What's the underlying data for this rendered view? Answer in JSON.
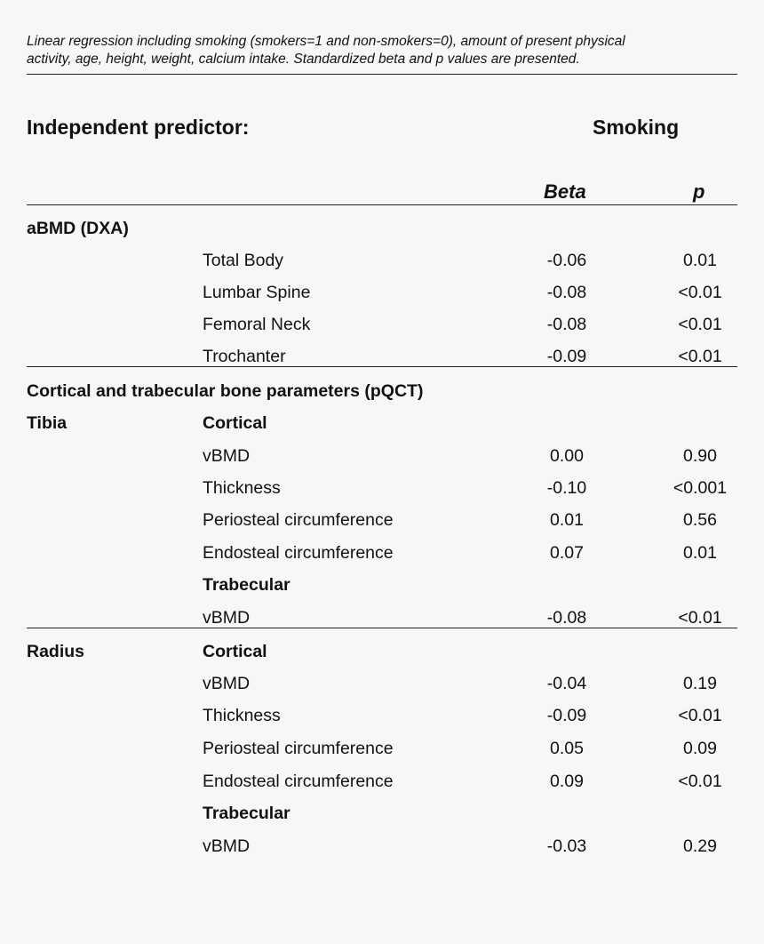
{
  "caption": {
    "line1": "Linear regression including smoking (smokers=1 and non-smokers=0), amount of present physical",
    "line2": "activity, age, height, weight, calcium intake. Standardized beta and p values are presented."
  },
  "header": {
    "predictor_label": "Independent predictor:",
    "predictor_value": "Smoking",
    "col_beta": "Beta",
    "col_p": "p"
  },
  "sections": {
    "abmd": "aBMD (DXA)",
    "pqct": "Cortical and trabecular bone parameters (pQCT)"
  },
  "rows": [
    {
      "site": "",
      "param": "Total Body",
      "bold": false,
      "beta": "-0.06",
      "p": "0.01"
    },
    {
      "site": "",
      "param": "Lumbar Spine",
      "bold": false,
      "beta": "-0.08",
      "p": "<0.01"
    },
    {
      "site": "",
      "param": "Femoral Neck",
      "bold": false,
      "beta": "-0.08",
      "p": "<0.01"
    },
    {
      "site": "",
      "param": "Trochanter",
      "bold": false,
      "beta": "-0.09",
      "p": "<0.01"
    },
    {
      "site": "Tibia",
      "param": "Cortical",
      "bold": true,
      "beta": "",
      "p": ""
    },
    {
      "site": "",
      "param": "vBMD",
      "bold": false,
      "beta": "0.00",
      "p": "0.90"
    },
    {
      "site": "",
      "param": "Thickness",
      "bold": false,
      "beta": "-0.10",
      "p": "<0.001"
    },
    {
      "site": "",
      "param": "Periosteal circumference",
      "bold": false,
      "beta": "0.01",
      "p": "0.56"
    },
    {
      "site": "",
      "param": "Endosteal circumference",
      "bold": false,
      "beta": "0.07",
      "p": "0.01"
    },
    {
      "site": "",
      "param": "Trabecular",
      "bold": true,
      "beta": "",
      "p": ""
    },
    {
      "site": "",
      "param": "vBMD",
      "bold": false,
      "beta": "-0.08",
      "p": "<0.01"
    },
    {
      "site": "Radius",
      "param": "Cortical",
      "bold": true,
      "beta": "",
      "p": ""
    },
    {
      "site": "",
      "param": "vBMD",
      "bold": false,
      "beta": "-0.04",
      "p": "0.19"
    },
    {
      "site": "",
      "param": "Thickness",
      "bold": false,
      "beta": "-0.09",
      "p": "<0.01"
    },
    {
      "site": "",
      "param": "Periosteal circumference",
      "bold": false,
      "beta": "0.05",
      "p": "0.09"
    },
    {
      "site": "",
      "param": "Endosteal circumference",
      "bold": false,
      "beta": "0.09",
      "p": "<0.01"
    },
    {
      "site": "",
      "param": "Trabecular",
      "bold": true,
      "beta": "",
      "p": ""
    },
    {
      "site": "",
      "param": "vBMD",
      "bold": false,
      "beta": "-0.03",
      "p": "0.29"
    }
  ]
}
